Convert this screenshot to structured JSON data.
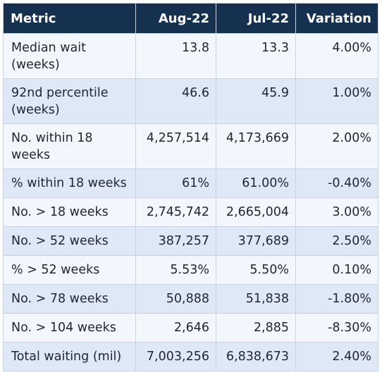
{
  "table": {
    "columns": [
      "Metric",
      "Aug-22",
      "Jul-22",
      "Variation"
    ],
    "rows": [
      {
        "metric": "Median wait (weeks)",
        "aug": "13.8",
        "jul": "13.3",
        "variation": "4.00%"
      },
      {
        "metric": "92nd percentile (weeks)",
        "aug": "46.6",
        "jul": "45.9",
        "variation": "1.00%"
      },
      {
        "metric": "No. within 18 weeks",
        "aug": "4,257,514",
        "jul": "4,173,669",
        "variation": "2.00%"
      },
      {
        "metric": "% within 18 weeks",
        "aug": "61%",
        "jul": "61.00%",
        "variation": "-0.40%"
      },
      {
        "metric": "No. > 18 weeks",
        "aug": "2,745,742",
        "jul": "2,665,004",
        "variation": "3.00%"
      },
      {
        "metric": "No. > 52 weeks",
        "aug": "387,257",
        "jul": "377,689",
        "variation": "2.50%"
      },
      {
        "metric": "% > 52 weeks",
        "aug": "5.53%",
        "jul": "5.50%",
        "variation": "0.10%"
      },
      {
        "metric": "No. > 78 weeks",
        "aug": "50,888",
        "jul": "51,838",
        "variation": "-1.80%"
      },
      {
        "metric": "No. > 104 weeks",
        "aug": "2,646",
        "jul": "2,885",
        "variation": "-8.30%"
      },
      {
        "metric": "Total waiting (mil)",
        "aug": "7,003,256",
        "jul": "6,838,673",
        "variation": "2.40%"
      }
    ]
  },
  "colors": {
    "header_bg": "#16314f",
    "row_light": "#f3f6fd",
    "row_dark": "#dfe8f7",
    "border": "#c9d2de"
  }
}
